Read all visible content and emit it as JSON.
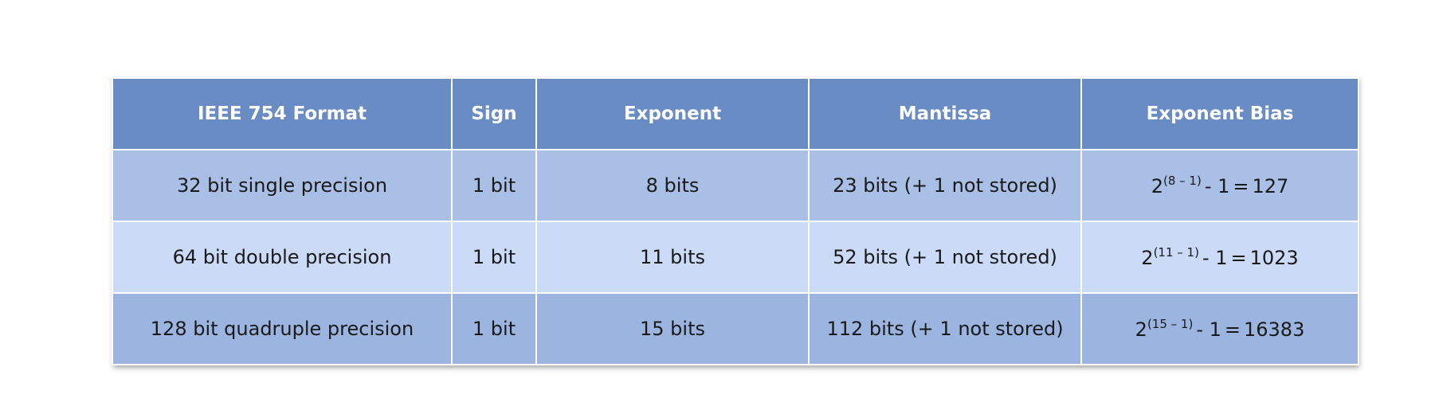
{
  "table": {
    "headers": [
      "IEEE 754 Format",
      "Sign",
      "Exponent",
      "Mantissa",
      "Exponent Bias"
    ],
    "rows": [
      {
        "format": "32 bit single precision",
        "sign": "1 bit",
        "exponent": "8 bits",
        "mantissa": "23 bits (+ 1 not stored)",
        "bias": {
          "base": "2",
          "power": "(8 – 1)",
          "rest": "- 1",
          "eq": "=",
          "value": "127"
        }
      },
      {
        "format": "64 bit double precision",
        "sign": "1 bit",
        "exponent": "11 bits",
        "mantissa": "52 bits (+ 1 not stored)",
        "bias": {
          "base": "2",
          "power": "(11 – 1)",
          "rest": "- 1",
          "eq": "=",
          "value": "1023"
        }
      },
      {
        "format": "128 bit quadruple precision",
        "sign": "1 bit",
        "exponent": "15 bits",
        "mantissa": "112 bits (+ 1 not stored)",
        "bias": {
          "base": "2",
          "power": "(15 – 1)",
          "rest": "- 1",
          "eq": "=",
          "value": "16383"
        }
      }
    ]
  },
  "colors": {
    "header": "#6a8cc4",
    "row_1": "#a9bfe5",
    "row_2": "#cbdaf6",
    "row_3": "#9bb4e0"
  }
}
